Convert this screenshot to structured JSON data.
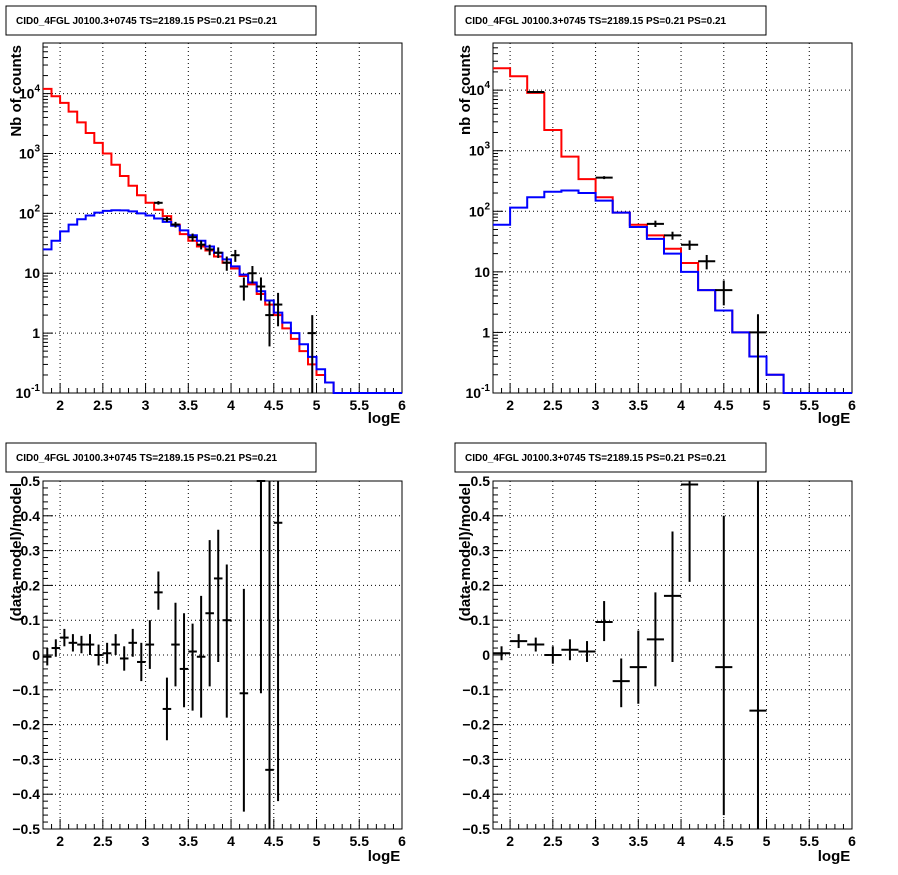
{
  "chart_data": [
    {
      "type": "histogram",
      "title": "CID0_4FGL J0100.3+0745 TS=2189.15 PS=0.21 PS=0.21",
      "xlabel": "logE",
      "ylabel": "Nb of counts",
      "xlim": [
        1.8,
        6.0
      ],
      "ylim": [
        0.1,
        70000
      ],
      "yscale": "log",
      "grid": true,
      "xticks": [
        "2",
        "2.5",
        "3",
        "3.5",
        "4",
        "4.5",
        "5",
        "5.5",
        "6"
      ],
      "yticks": [
        {
          "value": 0.1,
          "label": "10^-1"
        },
        {
          "value": 1,
          "label": "1"
        },
        {
          "value": 10,
          "label": "10"
        },
        {
          "value": 100,
          "label": "10^2"
        },
        {
          "value": 1000,
          "label": "10^3"
        },
        {
          "value": 10000,
          "label": "10^4"
        }
      ],
      "bin_edges": [
        1.8,
        1.9,
        2.0,
        2.1,
        2.2,
        2.3,
        2.4,
        2.5,
        2.6,
        2.7,
        2.8,
        2.9,
        3.0,
        3.1,
        3.2,
        3.3,
        3.4,
        3.5,
        3.6,
        3.7,
        3.8,
        3.9,
        4.0,
        4.1,
        4.2,
        4.3,
        4.4,
        4.5,
        4.6,
        4.7,
        4.8,
        4.9,
        5.0,
        5.1,
        5.2,
        5.3,
        5.4,
        5.5,
        5.6,
        5.7,
        5.8,
        5.9,
        6.0
      ],
      "series": [
        {
          "color": "#ff0000",
          "values": [
            12000,
            9000,
            7000,
            5000,
            3300,
            2200,
            1500,
            1000,
            650,
            420,
            290,
            200,
            150,
            115,
            90,
            65,
            45,
            35,
            28,
            24,
            19,
            15,
            12,
            9,
            6.5,
            4.5,
            3.0,
            2.0,
            1.2,
            0.8,
            0.5,
            0.3,
            0.2,
            0.15,
            0.1,
            0.1,
            0.1,
            0.1,
            0.1,
            0.1,
            0.1,
            0.1
          ]
        },
        {
          "color": "#0000ff",
          "values": [
            25,
            35,
            50,
            65,
            80,
            92,
            103,
            110,
            113,
            112,
            108,
            100,
            92,
            82,
            72,
            62,
            52,
            43,
            35,
            28,
            22,
            17,
            13,
            9.5,
            7,
            5,
            3.5,
            2.2,
            1.5,
            1.0,
            0.65,
            0.4,
            0.25,
            0.15,
            0.1,
            0.1,
            0.1,
            0.1,
            0.1,
            0.1,
            0.1,
            0.1
          ]
        }
      ],
      "points": [
        {
          "x": 3.15,
          "y": 150,
          "xerr": 0.05,
          "ylo": 140,
          "yhi": 160
        },
        {
          "x": 3.25,
          "y": 80,
          "xerr": 0.05,
          "ylo": 72,
          "yhi": 88
        },
        {
          "x": 3.35,
          "y": 65,
          "xerr": 0.05,
          "ylo": 58,
          "yhi": 72
        },
        {
          "x": 3.55,
          "y": 40,
          "xerr": 0.05,
          "ylo": 34,
          "yhi": 46
        },
        {
          "x": 3.65,
          "y": 30,
          "xerr": 0.05,
          "ylo": 25,
          "yhi": 35
        },
        {
          "x": 3.75,
          "y": 25,
          "xerr": 0.05,
          "ylo": 20,
          "yhi": 30
        },
        {
          "x": 3.85,
          "y": 22,
          "xerr": 0.05,
          "ylo": 18,
          "yhi": 27
        },
        {
          "x": 3.95,
          "y": 15,
          "xerr": 0.05,
          "ylo": 11,
          "yhi": 19
        },
        {
          "x": 4.05,
          "y": 20,
          "xerr": 0.05,
          "ylo": 15.5,
          "yhi": 24.5
        },
        {
          "x": 4.15,
          "y": 6,
          "xerr": 0.05,
          "ylo": 3.5,
          "yhi": 8.5
        },
        {
          "x": 4.25,
          "y": 10,
          "xerr": 0.05,
          "ylo": 6.8,
          "yhi": 13.2
        },
        {
          "x": 4.35,
          "y": 6,
          "xerr": 0.05,
          "ylo": 3.5,
          "yhi": 8.5
        },
        {
          "x": 4.45,
          "y": 2,
          "xerr": 0.05,
          "ylo": 0.6,
          "yhi": 3.4
        },
        {
          "x": 4.55,
          "y": 3,
          "xerr": 0.05,
          "ylo": 1.3,
          "yhi": 4.7
        },
        {
          "x": 4.95,
          "y": 1,
          "xerr": 0.05,
          "ylo": 0.1,
          "yhi": 2
        }
      ]
    },
    {
      "type": "histogram",
      "title": "CID0_4FGL J0100.3+0745 TS=2189.15 PS=0.21 PS=0.21",
      "xlabel": "logE",
      "ylabel": "nb of counts",
      "xlim": [
        1.8,
        6.0
      ],
      "ylim": [
        0.1,
        60000
      ],
      "yscale": "log",
      "grid": true,
      "xticks": [
        "2",
        "2.5",
        "3",
        "3.5",
        "4",
        "4.5",
        "5",
        "5.5",
        "6"
      ],
      "yticks": [
        {
          "value": 0.1,
          "label": "10^-1"
        },
        {
          "value": 1,
          "label": "1"
        },
        {
          "value": 10,
          "label": "10"
        },
        {
          "value": 100,
          "label": "10^2"
        },
        {
          "value": 1000,
          "label": "10^3"
        },
        {
          "value": 10000,
          "label": "10^4"
        }
      ],
      "bin_edges": [
        1.8,
        2.0,
        2.2,
        2.4,
        2.6,
        2.8,
        3.0,
        3.2,
        3.4,
        3.6,
        3.8,
        4.0,
        4.2,
        4.4,
        4.6,
        4.8,
        5.0,
        5.2,
        5.4,
        5.6,
        5.8,
        6.0
      ],
      "series": [
        {
          "color": "#ff0000",
          "values": [
            23000,
            17000,
            9000,
            2200,
            800,
            340,
            170,
            95,
            60,
            40,
            24,
            14,
            5,
            2.3,
            1.0,
            0.4,
            0.2,
            0.1,
            0.1,
            0.1,
            0.1
          ]
        },
        {
          "color": "#0000ff",
          "values": [
            60,
            115,
            170,
            210,
            220,
            200,
            150,
            95,
            55,
            35,
            20,
            10,
            5,
            2.3,
            1.0,
            0.4,
            0.2,
            0.1,
            0.1,
            0.1,
            0.1
          ]
        }
      ],
      "points": [
        {
          "x": 2.3,
          "y": 9300,
          "xerr": 0.1,
          "ylo": 9100,
          "yhi": 9500
        },
        {
          "x": 3.1,
          "y": 360,
          "xerr": 0.1,
          "ylo": 340,
          "yhi": 380
        },
        {
          "x": 3.7,
          "y": 62,
          "xerr": 0.1,
          "ylo": 55,
          "yhi": 70
        },
        {
          "x": 3.9,
          "y": 40,
          "xerr": 0.1,
          "ylo": 34,
          "yhi": 46
        },
        {
          "x": 4.1,
          "y": 28,
          "xerr": 0.1,
          "ylo": 23,
          "yhi": 33
        },
        {
          "x": 4.3,
          "y": 15,
          "xerr": 0.1,
          "ylo": 11,
          "yhi": 19
        },
        {
          "x": 4.5,
          "y": 5,
          "xerr": 0.1,
          "ylo": 2.8,
          "yhi": 7.2
        },
        {
          "x": 4.9,
          "y": 1,
          "xerr": 0.1,
          "ylo": 0.1,
          "yhi": 2
        }
      ]
    },
    {
      "type": "scatter",
      "title": "CID0_4FGL J0100.3+0745 TS=2189.15 PS=0.21 PS=0.21",
      "xlabel": "logE",
      "ylabel": "(data-model)/model",
      "xlim": [
        1.8,
        6.0
      ],
      "ylim": [
        -0.5,
        0.5
      ],
      "grid": true,
      "xticks": [
        "2",
        "2.5",
        "3",
        "3.5",
        "4",
        "4.5",
        "5",
        "5.5",
        "6"
      ],
      "yticks": [
        "−0.5",
        "−0.4",
        "−0.3",
        "−0.2",
        "−0.1",
        "0",
        "0.1",
        "0.2",
        "0.3",
        "0.4",
        "0.5"
      ],
      "points": [
        {
          "x": 1.85,
          "y": -0.005,
          "xerr": 0.05,
          "ylo": -0.03,
          "yhi": 0.02
        },
        {
          "x": 1.95,
          "y": 0.02,
          "xerr": 0.05,
          "ylo": -0.005,
          "yhi": 0.045
        },
        {
          "x": 2.05,
          "y": 0.05,
          "xerr": 0.05,
          "ylo": 0.025,
          "yhi": 0.075
        },
        {
          "x": 2.15,
          "y": 0.035,
          "xerr": 0.05,
          "ylo": 0.01,
          "yhi": 0.06
        },
        {
          "x": 2.25,
          "y": 0.03,
          "xerr": 0.05,
          "ylo": 0.005,
          "yhi": 0.055
        },
        {
          "x": 2.35,
          "y": 0.03,
          "xerr": 0.05,
          "ylo": 0.0,
          "yhi": 0.06
        },
        {
          "x": 2.45,
          "y": 0.0,
          "xerr": 0.05,
          "ylo": -0.03,
          "yhi": 0.03
        },
        {
          "x": 2.55,
          "y": 0.005,
          "xerr": 0.05,
          "ylo": -0.025,
          "yhi": 0.035
        },
        {
          "x": 2.65,
          "y": 0.03,
          "xerr": 0.05,
          "ylo": 0.0,
          "yhi": 0.06
        },
        {
          "x": 2.75,
          "y": -0.01,
          "xerr": 0.05,
          "ylo": -0.045,
          "yhi": 0.025
        },
        {
          "x": 2.85,
          "y": 0.035,
          "xerr": 0.05,
          "ylo": -0.005,
          "yhi": 0.075
        },
        {
          "x": 2.95,
          "y": -0.02,
          "xerr": 0.05,
          "ylo": -0.075,
          "yhi": 0.035
        },
        {
          "x": 3.05,
          "y": 0.03,
          "xerr": 0.05,
          "ylo": -0.04,
          "yhi": 0.1
        },
        {
          "x": 3.15,
          "y": 0.18,
          "xerr": 0.05,
          "ylo": 0.13,
          "yhi": 0.24
        },
        {
          "x": 3.25,
          "y": -0.155,
          "xerr": 0.05,
          "ylo": -0.245,
          "yhi": -0.065
        },
        {
          "x": 3.35,
          "y": 0.03,
          "xerr": 0.05,
          "ylo": -0.09,
          "yhi": 0.15
        },
        {
          "x": 3.45,
          "y": -0.04,
          "xerr": 0.05,
          "ylo": -0.15,
          "yhi": 0.12
        },
        {
          "x": 3.55,
          "y": 0.01,
          "xerr": 0.05,
          "ylo": -0.16,
          "yhi": 0.09
        },
        {
          "x": 3.65,
          "y": -0.005,
          "xerr": 0.05,
          "ylo": -0.18,
          "yhi": 0.17
        },
        {
          "x": 3.75,
          "y": 0.12,
          "xerr": 0.05,
          "ylo": -0.09,
          "yhi": 0.33
        },
        {
          "x": 3.85,
          "y": 0.22,
          "xerr": 0.05,
          "ylo": -0.02,
          "yhi": 0.36
        },
        {
          "x": 3.95,
          "y": 0.1,
          "xerr": 0.05,
          "ylo": -0.18,
          "yhi": 0.26
        },
        {
          "x": 4.15,
          "y": -0.11,
          "xerr": 0.05,
          "ylo": -0.45,
          "yhi": 0.19
        },
        {
          "x": 4.35,
          "y": 0.5,
          "xerr": 0.05,
          "ylo": -0.11,
          "yhi": 0.5
        },
        {
          "x": 4.45,
          "y": -0.33,
          "xerr": 0.05,
          "ylo": -0.5,
          "yhi": 0.5
        },
        {
          "x": 4.55,
          "y": 0.38,
          "xerr": 0.05,
          "ylo": -0.42,
          "yhi": 0.5
        }
      ]
    },
    {
      "type": "scatter",
      "title": "CID0_4FGL J0100.3+0745 TS=2189.15 PS=0.21 PS=0.21",
      "xlabel": "logE",
      "ylabel": "(data-model)/model",
      "xlim": [
        1.8,
        6.0
      ],
      "ylim": [
        -0.5,
        0.5
      ],
      "grid": true,
      "xticks": [
        "2",
        "2.5",
        "3",
        "3.5",
        "4",
        "4.5",
        "5",
        "5.5",
        "6"
      ],
      "yticks": [
        "−0.5",
        "−0.4",
        "−0.3",
        "−0.2",
        "−0.1",
        "0",
        "0.1",
        "0.2",
        "0.3",
        "0.4",
        "0.5"
      ],
      "points": [
        {
          "x": 1.9,
          "y": 0.005,
          "xerr": 0.1,
          "ylo": -0.015,
          "yhi": 0.025
        },
        {
          "x": 2.1,
          "y": 0.04,
          "xerr": 0.1,
          "ylo": 0.02,
          "yhi": 0.06
        },
        {
          "x": 2.3,
          "y": 0.03,
          "xerr": 0.1,
          "ylo": 0.01,
          "yhi": 0.05
        },
        {
          "x": 2.5,
          "y": 0.0,
          "xerr": 0.1,
          "ylo": -0.025,
          "yhi": 0.025
        },
        {
          "x": 2.7,
          "y": 0.015,
          "xerr": 0.1,
          "ylo": -0.015,
          "yhi": 0.045
        },
        {
          "x": 2.9,
          "y": 0.01,
          "xerr": 0.1,
          "ylo": -0.02,
          "yhi": 0.04
        },
        {
          "x": 3.1,
          "y": 0.095,
          "xerr": 0.1,
          "ylo": 0.04,
          "yhi": 0.155
        },
        {
          "x": 3.3,
          "y": -0.075,
          "xerr": 0.1,
          "ylo": -0.15,
          "yhi": -0.01
        },
        {
          "x": 3.5,
          "y": -0.035,
          "xerr": 0.1,
          "ylo": -0.14,
          "yhi": 0.07
        },
        {
          "x": 3.7,
          "y": 0.045,
          "xerr": 0.1,
          "ylo": -0.09,
          "yhi": 0.18
        },
        {
          "x": 3.9,
          "y": 0.17,
          "xerr": 0.1,
          "ylo": -0.02,
          "yhi": 0.355
        },
        {
          "x": 4.1,
          "y": 0.49,
          "xerr": 0.1,
          "ylo": 0.21,
          "yhi": 0.5
        },
        {
          "x": 4.5,
          "y": -0.035,
          "xerr": 0.1,
          "ylo": -0.46,
          "yhi": 0.4
        },
        {
          "x": 4.9,
          "y": -0.16,
          "xerr": 0.1,
          "ylo": -0.5,
          "yhi": 0.5
        }
      ]
    }
  ]
}
